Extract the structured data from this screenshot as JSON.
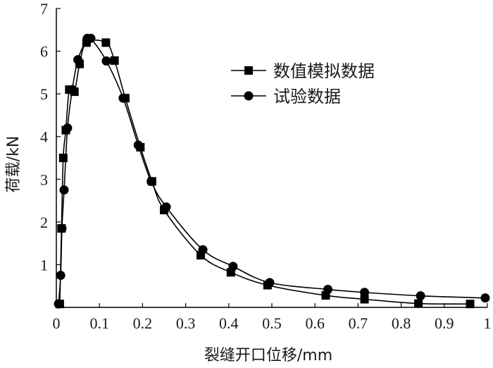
{
  "chart_data": {
    "type": "line",
    "title": "",
    "xlabel": "裂缝开口位移/mm",
    "ylabel": "荷载/kN",
    "xlim": [
      0,
      1
    ],
    "ylim": [
      0,
      7
    ],
    "x_ticks": [
      "0",
      "0.1",
      "0.2",
      "0.3",
      "0.4",
      "0.5",
      "0.6",
      "0.7",
      "0.8",
      "0.9",
      "1"
    ],
    "y_ticks": [
      "1",
      "2",
      "3",
      "4",
      "5",
      "6",
      "7"
    ],
    "grid": false,
    "legend_position": "top-right",
    "series": [
      {
        "name": "数值模拟数据",
        "marker": "square",
        "color": "#000000",
        "x": [
          0.008,
          0.012,
          0.016,
          0.022,
          0.03,
          0.042,
          0.054,
          0.07,
          0.115,
          0.135,
          0.16,
          0.195,
          0.222,
          0.25,
          0.335,
          0.405,
          0.49,
          0.625,
          0.715,
          0.84,
          0.96
        ],
        "y": [
          0.08,
          1.85,
          3.5,
          4.15,
          5.1,
          5.05,
          5.7,
          6.2,
          6.2,
          5.78,
          4.9,
          3.75,
          2.95,
          2.28,
          1.22,
          0.82,
          0.52,
          0.28,
          0.19,
          0.09,
          0.08
        ]
      },
      {
        "name": "试验数据",
        "marker": "circle",
        "color": "#000000",
        "x": [
          0.005,
          0.01,
          0.013,
          0.018,
          0.026,
          0.037,
          0.05,
          0.072,
          0.08,
          0.116,
          0.155,
          0.19,
          0.22,
          0.255,
          0.34,
          0.41,
          0.495,
          0.63,
          0.715,
          0.845,
          0.995
        ],
        "y": [
          0.08,
          0.75,
          1.85,
          2.75,
          4.2,
          5.1,
          5.8,
          6.3,
          6.3,
          5.77,
          4.9,
          3.8,
          2.95,
          2.35,
          1.35,
          0.96,
          0.58,
          0.42,
          0.35,
          0.27,
          0.22
        ]
      }
    ]
  }
}
